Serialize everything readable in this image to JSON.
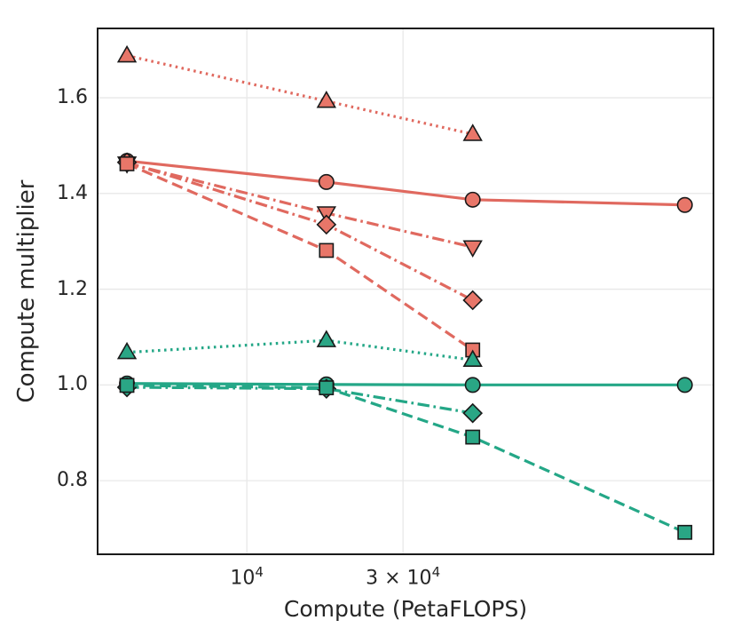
{
  "figure": {
    "background": "#ffffff",
    "text_color": "#262626",
    "grid_color": "#e8e8e8",
    "spine_color": "#1a1a1a"
  },
  "chart_data": {
    "type": "line",
    "title": "",
    "xlabel": "Compute (PetaFLOPS)",
    "ylabel": "Compute multiplier",
    "xscale": "log",
    "grid": true,
    "legend": "none",
    "xlim": [
      3520,
      265000
    ],
    "ylim": [
      0.648,
      1.743
    ],
    "x": [
      4300,
      17500,
      49000,
      218000
    ],
    "xticks": [
      {
        "value": 10000,
        "base": "10",
        "exp": "4"
      },
      {
        "value": 30000,
        "base": "3 × 10",
        "exp": "4"
      }
    ],
    "yticks": [
      {
        "value": 0.8,
        "label": "0.8"
      },
      {
        "value": 1.0,
        "label": "1.0"
      },
      {
        "value": 1.2,
        "label": "1.2"
      },
      {
        "value": 1.4,
        "label": "1.4"
      },
      {
        "value": 1.6,
        "label": "1.6"
      }
    ],
    "colors": {
      "red_line": "#e0695f",
      "red_fill": "#e87669",
      "green_line": "#24a787",
      "green_fill": "#2aa685",
      "marker_edge": "#1a1a1a"
    },
    "series": [
      {
        "name": "red-dotted-triangle-up",
        "group": "red",
        "marker": "triangle-up",
        "linestyle": "dotted",
        "values": [
          1.688,
          1.593,
          1.524
        ]
      },
      {
        "name": "red-solid-circle",
        "group": "red",
        "marker": "circle",
        "linestyle": "solid",
        "values": [
          1.468,
          1.424,
          1.387,
          1.376
        ]
      },
      {
        "name": "red-dashdot-triangle-down",
        "group": "red",
        "marker": "triangle-down",
        "linestyle": "dashdot",
        "values": [
          1.463,
          1.359,
          1.288
        ]
      },
      {
        "name": "red-dashdot-diamond",
        "group": "red",
        "marker": "diamond",
        "linestyle": "dashdot",
        "values": [
          1.465,
          1.335,
          1.177
        ]
      },
      {
        "name": "red-dashed-square",
        "group": "red",
        "marker": "square",
        "linestyle": "dashed",
        "values": [
          1.462,
          1.281,
          1.073
        ]
      },
      {
        "name": "green-dotted-triangle-up",
        "group": "green",
        "marker": "triangle-up",
        "linestyle": "dotted",
        "values": [
          1.068,
          1.093,
          1.052
        ]
      },
      {
        "name": "green-solid-circle",
        "group": "green",
        "marker": "circle",
        "linestyle": "solid",
        "values": [
          1.003,
          1.001,
          1.0,
          1.0
        ]
      },
      {
        "name": "green-dashdot-diamond",
        "group": "green",
        "marker": "diamond",
        "linestyle": "dashdot",
        "values": [
          0.995,
          0.992,
          0.941
        ]
      },
      {
        "name": "green-dashed-square",
        "group": "green",
        "marker": "square",
        "linestyle": "dashed",
        "values": [
          0.999,
          0.994,
          0.891,
          0.692
        ]
      }
    ]
  }
}
